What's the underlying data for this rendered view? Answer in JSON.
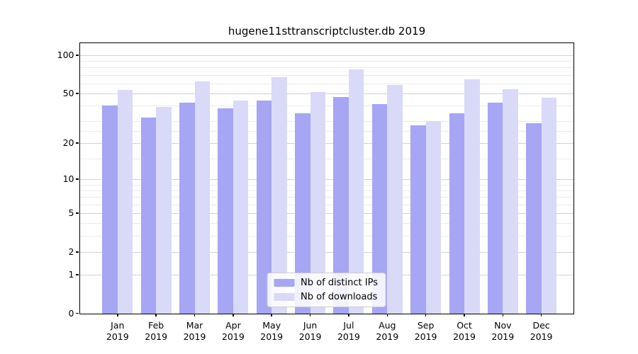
{
  "title": "hugene11sttranscriptcluster.db 2019",
  "chart_data": {
    "type": "bar",
    "title": "hugene11sttranscriptcluster.db 2019",
    "categories": [
      "Jan 2019",
      "Feb 2019",
      "Mar 2019",
      "Apr 2019",
      "May 2019",
      "Jun 2019",
      "Jul 2019",
      "Aug 2019",
      "Sep 2019",
      "Oct 2019",
      "Nov 2019",
      "Dec 2019"
    ],
    "series": [
      {
        "name": "Nb of distinct IPs",
        "color": "#a6a6f4",
        "values": [
          40,
          32,
          42,
          38,
          44,
          35,
          47,
          41,
          28,
          35,
          42,
          29
        ]
      },
      {
        "name": "Nb of downloads",
        "color": "#d9d9f8",
        "values": [
          53,
          39,
          62,
          44,
          67,
          51,
          77,
          58,
          30,
          65,
          54,
          46
        ]
      }
    ],
    "xlabel": "",
    "ylabel": "",
    "yscale": "log1p",
    "ylim": [
      0,
      125
    ],
    "yticks": [
      0,
      1,
      2,
      5,
      10,
      20,
      50,
      100
    ],
    "minor_yticks": [
      3,
      4,
      6,
      7,
      8,
      9,
      15,
      25,
      30,
      40,
      60,
      70,
      80,
      90
    ],
    "grid": true,
    "legend_position": "lower center",
    "colors": {
      "axis": "#000000",
      "grid_major": "#d2d2d2",
      "grid_minor": "#ececec",
      "background": "#ffffff",
      "text": "#000000"
    }
  }
}
